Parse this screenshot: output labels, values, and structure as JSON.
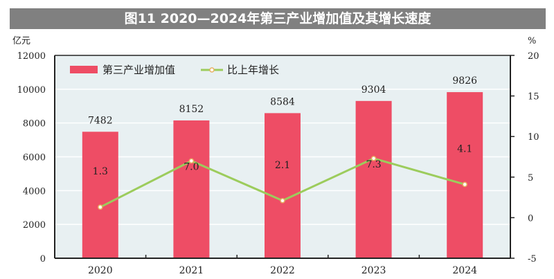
{
  "chart_data": {
    "type": "bar+line",
    "title": "图11 2020—2024年第三产业增加值及其增长速度",
    "categories": [
      "2020",
      "2021",
      "2022",
      "2023",
      "2024"
    ],
    "series": [
      {
        "name": "第三产业增加值",
        "type": "bar",
        "axis": "left",
        "values": [
          7482,
          8152,
          8584,
          9304,
          9826
        ],
        "labels": [
          "7482",
          "8152",
          "8584",
          "9304",
          "9826"
        ],
        "color": "#ee4d65"
      },
      {
        "name": "比上年增长",
        "type": "line",
        "axis": "right",
        "values": [
          1.3,
          7.0,
          2.1,
          7.3,
          4.1
        ],
        "labels": [
          "1.3",
          "7.0",
          "2.1",
          "7.3",
          "4.1"
        ],
        "color": "#9ccc5c",
        "marker_color": "#e8b062"
      }
    ],
    "y_left": {
      "unit": "亿元",
      "ylim": [
        0,
        12000
      ],
      "ticks": [
        "0",
        "2000",
        "4000",
        "6000",
        "8000",
        "10000",
        "12000"
      ]
    },
    "y_right": {
      "unit": "%",
      "ylim": [
        -5,
        20
      ],
      "ticks": [
        "-5",
        "0",
        "5",
        "10",
        "15",
        "20"
      ]
    },
    "grid": true,
    "legend": "top-left",
    "plot_background": "#e8f0f2"
  }
}
